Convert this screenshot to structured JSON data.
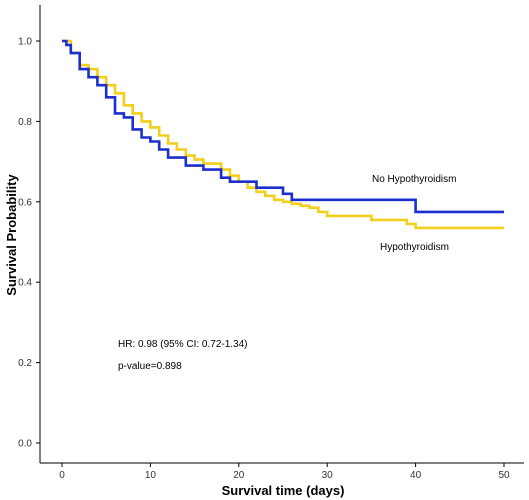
{
  "chart_data": {
    "type": "line",
    "step": true,
    "title": "",
    "xlabel": "Survival time (days)",
    "ylabel": "Survival Probability",
    "xlim": [
      0,
      50
    ],
    "ylim": [
      0,
      1
    ],
    "x_ticks": [
      "0",
      "10",
      "20",
      "30",
      "40",
      "50"
    ],
    "y_ticks": [
      "0.0",
      "0.2",
      "0.4",
      "0.6",
      "0.8",
      "1.0"
    ],
    "grid": false,
    "series": [
      {
        "name": "No Hypothyroidism",
        "color": "#1b2fd0",
        "points": [
          [
            0,
            1.0
          ],
          [
            0.5,
            0.99
          ],
          [
            1,
            0.97
          ],
          [
            2,
            0.93
          ],
          [
            3,
            0.91
          ],
          [
            4,
            0.89
          ],
          [
            5,
            0.86
          ],
          [
            6,
            0.82
          ],
          [
            7,
            0.81
          ],
          [
            8,
            0.78
          ],
          [
            9,
            0.76
          ],
          [
            10,
            0.75
          ],
          [
            11,
            0.73
          ],
          [
            12,
            0.71
          ],
          [
            14,
            0.69
          ],
          [
            16,
            0.68
          ],
          [
            18,
            0.66
          ],
          [
            19,
            0.65
          ],
          [
            22,
            0.635
          ],
          [
            25,
            0.62
          ],
          [
            26,
            0.605
          ],
          [
            40,
            0.575
          ],
          [
            50,
            0.575
          ]
        ]
      },
      {
        "name": "Hypothyroidism",
        "color": "#f2cf1a",
        "points": [
          [
            0,
            1.0
          ],
          [
            1,
            0.97
          ],
          [
            2,
            0.94
          ],
          [
            3,
            0.93
          ],
          [
            4,
            0.91
          ],
          [
            5,
            0.89
          ],
          [
            6,
            0.87
          ],
          [
            7,
            0.84
          ],
          [
            8,
            0.82
          ],
          [
            9,
            0.8
          ],
          [
            10,
            0.785
          ],
          [
            11,
            0.765
          ],
          [
            12,
            0.745
          ],
          [
            13,
            0.73
          ],
          [
            14,
            0.715
          ],
          [
            15,
            0.705
          ],
          [
            16,
            0.695
          ],
          [
            18,
            0.68
          ],
          [
            19,
            0.665
          ],
          [
            20,
            0.65
          ],
          [
            21,
            0.635
          ],
          [
            22,
            0.625
          ],
          [
            23,
            0.615
          ],
          [
            24,
            0.605
          ],
          [
            25,
            0.6
          ],
          [
            26,
            0.595
          ],
          [
            27,
            0.59
          ],
          [
            28,
            0.585
          ],
          [
            29,
            0.575
          ],
          [
            30,
            0.565
          ],
          [
            35,
            0.555
          ],
          [
            39,
            0.545
          ],
          [
            40,
            0.535
          ],
          [
            50,
            0.535
          ]
        ]
      }
    ],
    "series_labels": [
      "No Hypothyroidism",
      "Hypothyroidism"
    ],
    "annotations": [
      "HR: 0.98 (95% CI: 0.72-1.34)",
      "p-value=0.898"
    ]
  }
}
